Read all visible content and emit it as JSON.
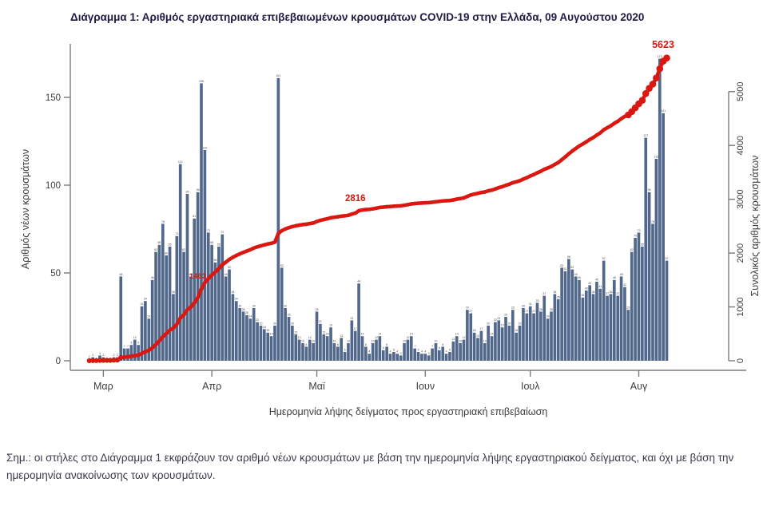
{
  "page": {
    "title": "Διάγραμμα 1: Αριθμός εργαστηριακά επιβεβαιωμένων κρουσμάτων COVID-19 στην Ελλάδα, 09 Αυγούστου 2020",
    "footnote": "Σημ.: οι στήλες στο Διάγραμμα 1 εκφράζουν τον αριθμό νέων κρουσμάτων με βάση την ημερομηνία λήψης εργαστηριακού δείγματος, και όχι με βάση την ημερομηνία ανακοίνωσης των κρουσμάτων."
  },
  "chart_data": {
    "type": "bar",
    "title": "Διάγραμμα 1: Αριθμός εργαστηριακά επιβεβαιωμένων κρουσμάτων COVID-19 στην Ελλάδα, 09 Αυγούστου 2020",
    "xlabel": "Ημερομηνία λήψης δείγματος προς εργαστηριακή επιβεβαίωση",
    "ylabel_left": "Αριθμός νέων κρουσμάτων",
    "ylabel_right": "Συνολικός αριθμός κρουσμάτων",
    "x_tick_labels": [
      "Μαρ",
      "Απρ",
      "Μαϊ",
      "Ιουν",
      "Ιουλ",
      "Αυγ"
    ],
    "month_start_indices": [
      4,
      35,
      65,
      96,
      126,
      157
    ],
    "y_ticks_left": [
      0,
      50,
      100,
      150
    ],
    "y_ticks_right": [
      0,
      1000,
      2000,
      3000,
      4000,
      5000
    ],
    "ylim_left": [
      0,
      175
    ],
    "ylim_right": [
      0,
      5700
    ],
    "grid": "off",
    "series": [
      {
        "name": "Αριθμός νέων κρουσμάτων (στήλες, ανά ημερομηνία λήψης δείγματος)",
        "kind": "bar",
        "values": [
          1,
          2,
          0,
          3,
          2,
          0,
          0,
          2,
          2,
          48,
          7,
          7,
          9,
          12,
          9,
          31,
          34,
          24,
          46,
          62,
          66,
          78,
          60,
          65,
          38,
          71,
          112,
          62,
          95,
          48,
          81,
          96,
          158,
          120,
          73,
          66,
          56,
          65,
          72,
          48,
          52,
          38,
          34,
          30,
          28,
          26,
          24,
          30,
          22,
          20,
          18,
          16,
          14,
          20,
          161,
          53,
          30,
          25,
          20,
          15,
          12,
          10,
          8,
          12,
          10,
          28,
          21,
          15,
          14,
          19,
          10,
          8,
          13,
          5,
          10,
          23,
          17,
          44,
          14,
          8,
          4,
          10,
          12,
          14,
          6,
          8,
          4,
          5,
          4,
          3,
          10,
          12,
          14,
          7,
          5,
          4,
          4,
          3,
          7,
          10,
          6,
          8,
          4,
          5,
          11,
          14,
          10,
          12,
          29,
          27,
          16,
          13,
          17,
          10,
          20,
          14,
          22,
          23,
          19,
          25,
          20,
          29,
          16,
          20,
          30,
          27,
          31,
          27,
          33,
          28,
          37,
          24,
          28,
          38,
          35,
          53,
          51,
          58,
          52,
          48,
          46,
          36,
          40,
          43,
          38,
          45,
          41,
          57,
          37,
          38,
          46,
          37,
          48,
          42,
          29,
          62,
          70,
          73,
          65,
          127,
          96,
          78,
          115,
          172,
          141,
          57
        ]
      },
      {
        "name": "Συνολικός αριθμός κρουσμάτων (κόκκινη γραμμή)",
        "kind": "line",
        "derivation": "cumulative sum of daily bar values",
        "final_value": 5623
      }
    ],
    "annotations": [
      {
        "text": "1463",
        "x": 237,
        "y": 349,
        "size": 9.5,
        "anchor": "start",
        "occluded_by_line": true
      },
      {
        "text": "2816",
        "x": 432,
        "y": 252,
        "size": 11.5,
        "anchor": "start",
        "occluded_by_line": false
      },
      {
        "text": "5623",
        "x": 830,
        "y": 60,
        "size": 12.5,
        "anchor": "middle",
        "occluded_by_line": false
      }
    ],
    "colors": {
      "bar": "#52688b",
      "line": "#da1710",
      "annotation": "#da1710",
      "title": "#201c44",
      "axis_line": "#7a7a7a",
      "axis_text": "#3d3d3d",
      "bar_label": "#4a4a4a"
    }
  }
}
